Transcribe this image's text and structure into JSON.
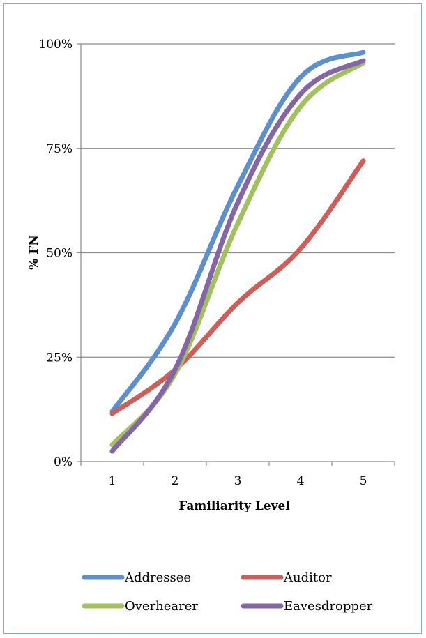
{
  "chart_data": {
    "type": "line",
    "categories": [
      "1",
      "2",
      "3",
      "4",
      "5"
    ],
    "y_tick_labels": [
      "0%",
      "25%",
      "50%",
      "75%",
      "100%"
    ],
    "ylim": [
      0,
      100
    ],
    "xlabel": "Familiarity Level",
    "ylabel": "% FN",
    "grid": true,
    "legend_position": "bottom",
    "series": [
      {
        "name": "Addressee",
        "color": "#5b8fce",
        "values": [
          12,
          33,
          66,
          92,
          98
        ]
      },
      {
        "name": "Auditor",
        "color": "#cf5e59",
        "values": [
          11.5,
          22,
          38,
          51,
          72
        ]
      },
      {
        "name": "Overhearer",
        "color": "#a1c15d",
        "values": [
          4,
          21,
          57,
          85,
          95.5
        ]
      },
      {
        "name": "Eavesdropper",
        "color": "#8466a8",
        "values": [
          2.5,
          22,
          62,
          88,
          96
        ]
      }
    ]
  }
}
